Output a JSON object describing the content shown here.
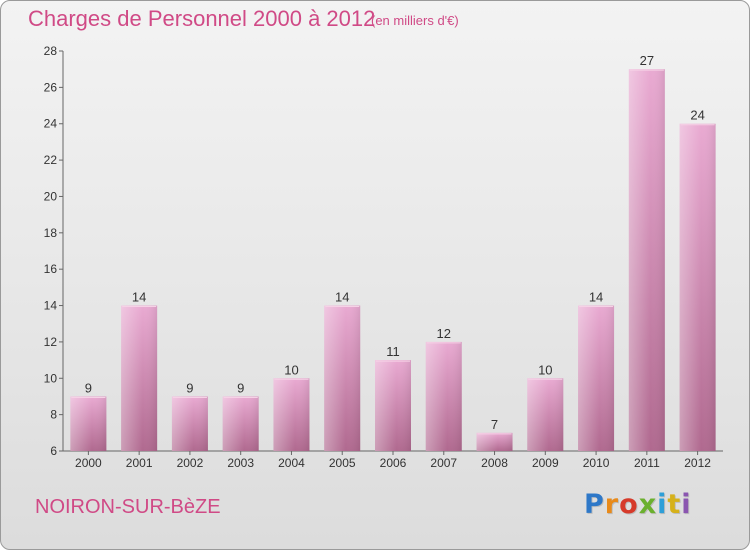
{
  "header": {
    "title": "Charges de Personnel 2000 à 2012",
    "unit_note": "(en milliers d'€)"
  },
  "footer": {
    "commune": "NOIRON-SUR-BèZE",
    "logo_letters": [
      "P",
      "r",
      "o",
      "x",
      "i",
      "t",
      "i"
    ],
    "logo_colors": [
      "#2e78c8",
      "#e88a1a",
      "#d63a2a",
      "#6bb02e",
      "#2e9fd8",
      "#d6b11a",
      "#8a55b0"
    ]
  },
  "chart_data": {
    "type": "bar",
    "categories": [
      "2000",
      "2001",
      "2002",
      "2003",
      "2004",
      "2005",
      "2006",
      "2007",
      "2008",
      "2009",
      "2010",
      "2011",
      "2012"
    ],
    "values": [
      9,
      14,
      9,
      9,
      10,
      14,
      11,
      12,
      7,
      10,
      14,
      27,
      24
    ],
    "ylim": [
      6,
      28
    ],
    "yticks": [
      6,
      8,
      10,
      12,
      14,
      16,
      18,
      20,
      22,
      24,
      26,
      28
    ],
    "title": "Charges de Personnel 2000 à 2012",
    "xlabel": "",
    "ylabel": "",
    "grid": false,
    "bar_color": "#d98ab8"
  }
}
